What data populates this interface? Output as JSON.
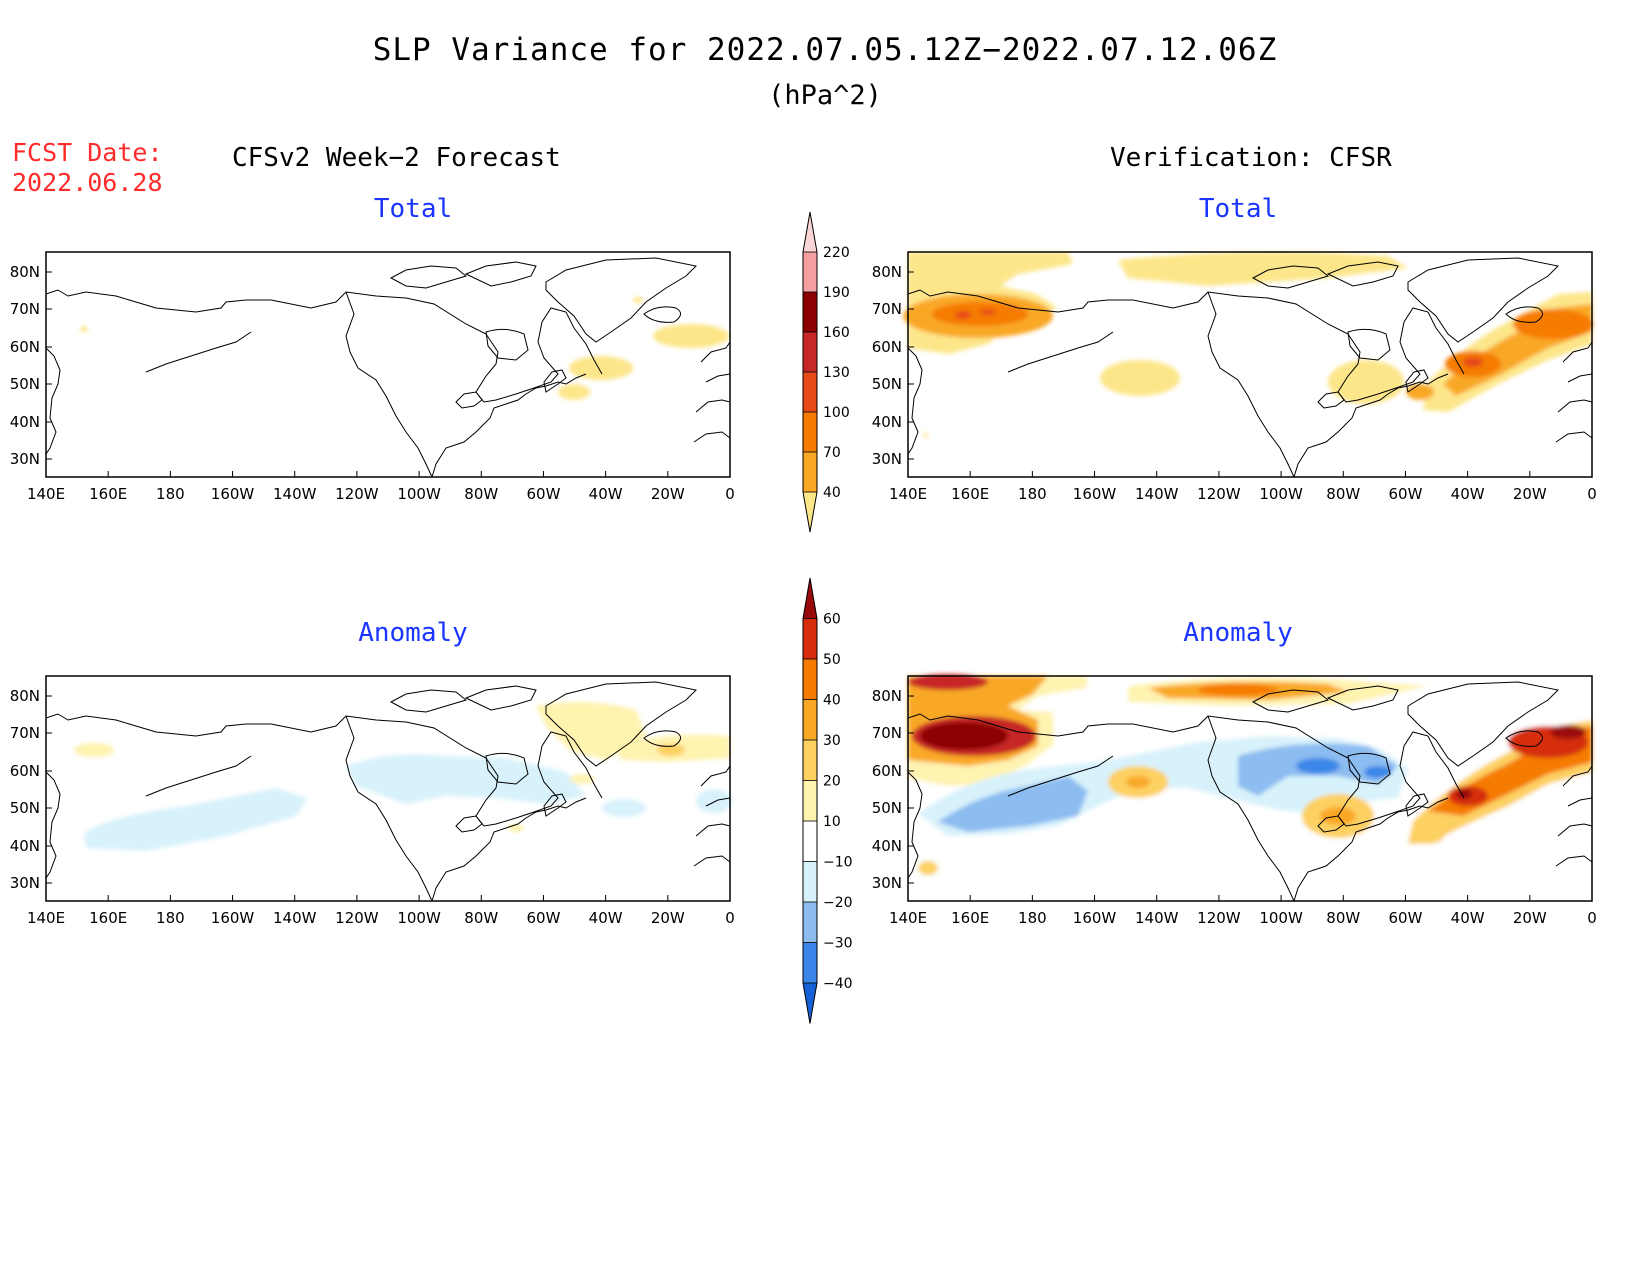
{
  "header": {
    "title": "SLP Variance for 2022.07.05.12Z−2022.07.12.06Z",
    "units": "(hPa^2)",
    "fcst_label": "FCST Date:",
    "fcst_date": "2022.06.28",
    "left_heading": "CFSv2 Week−2 Forecast",
    "right_heading": "Verification: CFSR"
  },
  "panels": {
    "total_title": "Total",
    "anomaly_title": "Anomaly"
  },
  "axes": {
    "lon_labels": [
      "140E",
      "160E",
      "180",
      "160W",
      "140W",
      "120W",
      "100W",
      "80W",
      "60W",
      "40W",
      "20W",
      "0"
    ],
    "lat_labels": [
      "80N",
      "70N",
      "60N",
      "50N",
      "40N",
      "30N"
    ]
  },
  "colorbars": {
    "total": {
      "levels": [
        "40",
        "70",
        "100",
        "130",
        "160",
        "190",
        "220"
      ],
      "colors": [
        "#fde68a",
        "#f9a825",
        "#f57c00",
        "#e64a19",
        "#c62828",
        "#8b0000",
        "#f4a0a0",
        "#fbd5d5"
      ]
    },
    "anomaly": {
      "levels": [
        "−40",
        "−30",
        "−20",
        "−10",
        "10",
        "20",
        "30",
        "40",
        "50",
        "60"
      ],
      "colors": [
        "#1560d6",
        "#3a86e8",
        "#8cbcf0",
        "#d8f2fb",
        "#ffffff",
        "#fff3b0",
        "#fdd062",
        "#f9a825",
        "#f57c00",
        "#d62d0d",
        "#9b0a0a"
      ]
    }
  }
}
